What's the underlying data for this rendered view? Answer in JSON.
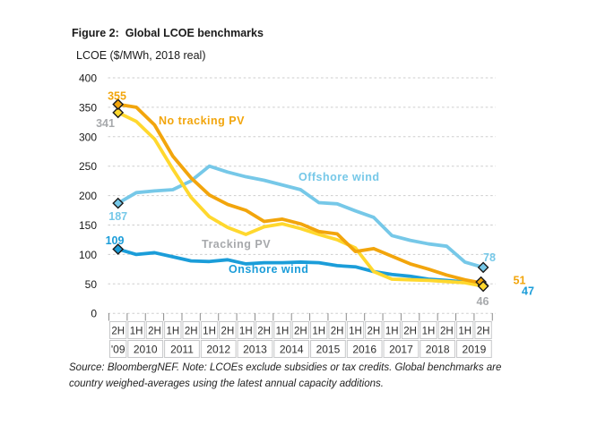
{
  "header": {
    "title": "Figure 2:  Global LCOE benchmarks"
  },
  "subtitle": "LCOE ($/MWh, 2018 real)",
  "source": {
    "line1": "Source: BloombergNEF. Note: LCOEs exclude subsidies or tax credits. Global benchmarks are",
    "line2": "country weighed-averages using the latest annual capacity additions."
  },
  "chart_data": {
    "type": "line",
    "title": "Global LCOE benchmarks",
    "ylabel": "LCOE ($/MWh, 2018 real)",
    "xlabel": "",
    "ylim": [
      0,
      400
    ],
    "y_ticks": [
      0,
      50,
      100,
      150,
      200,
      250,
      300,
      350,
      400
    ],
    "grid": "horizontal-dashed",
    "legend_position": "inline-labels",
    "x_half_labels": [
      "2H",
      "1H",
      "2H",
      "1H",
      "2H",
      "1H",
      "2H",
      "1H",
      "2H",
      "1H",
      "2H",
      "1H",
      "2H",
      "1H",
      "2H",
      "1H",
      "2H",
      "1H",
      "2H",
      "1H",
      "2H"
    ],
    "x_year_groups": [
      {
        "label": "'09",
        "cells": 1
      },
      {
        "label": "2010",
        "cells": 2
      },
      {
        "label": "2011",
        "cells": 2
      },
      {
        "label": "2012",
        "cells": 2
      },
      {
        "label": "2013",
        "cells": 2
      },
      {
        "label": "2014",
        "cells": 2
      },
      {
        "label": "2015",
        "cells": 2
      },
      {
        "label": "2016",
        "cells": 2
      },
      {
        "label": "2017",
        "cells": 2
      },
      {
        "label": "2018",
        "cells": 2
      },
      {
        "label": "2019",
        "cells": 2
      }
    ],
    "series": [
      {
        "name": "Offshore wind",
        "color": "#76C8E8",
        "label_color": "#76C8E8",
        "first_label": "187",
        "last_label": "78",
        "values": [
          187,
          205,
          208,
          210,
          225,
          250,
          240,
          232,
          226,
          218,
          210,
          188,
          186,
          174,
          163,
          132,
          124,
          118,
          114,
          87,
          78
        ]
      },
      {
        "name": "Onshore wind",
        "color": "#1B9DD9",
        "label_color": "#1B9DD9",
        "first_label": "109",
        "last_label": "47",
        "values": [
          109,
          100,
          103,
          96,
          89,
          88,
          91,
          84,
          86,
          86,
          87,
          86,
          81,
          79,
          71,
          66,
          63,
          58,
          56,
          53,
          47
        ]
      },
      {
        "name": "Tracking PV",
        "color": "#FFD82E",
        "label_color": "#A7A9AC",
        "first_label": "341",
        "last_label": "46",
        "values": [
          341,
          326,
          296,
          245,
          197,
          164,
          146,
          134,
          147,
          152,
          144,
          134,
          125,
          111,
          71,
          58,
          57,
          56,
          54,
          52,
          46
        ]
      },
      {
        "name": "No tracking PV",
        "color": "#F2A50C",
        "label_color": "#F2A50C",
        "first_label": "355",
        "last_label": "51",
        "values": [
          355,
          350,
          320,
          267,
          230,
          201,
          185,
          175,
          156,
          160,
          152,
          139,
          135,
          105,
          110,
          97,
          84,
          75,
          65,
          57,
          51
        ]
      }
    ]
  }
}
